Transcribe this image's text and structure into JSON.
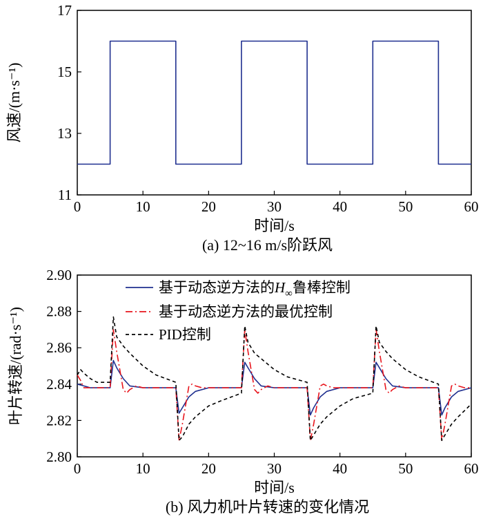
{
  "chart_data": [
    {
      "type": "line",
      "caption": "(a) 12~16 m/s阶跃风",
      "xlabel": "时间/s",
      "ylabel": "风速/(m·s⁻¹)",
      "xlim": [
        0,
        60
      ],
      "ylim": [
        11,
        17
      ],
      "xticks": [
        "0",
        "10",
        "20",
        "30",
        "40",
        "50",
        "60"
      ],
      "yticks": [
        "11",
        "13",
        "15",
        "17"
      ],
      "grid": false,
      "series": [
        {
          "color": "#1f2f8f",
          "dash": "solid",
          "x": [
            0,
            5,
            5,
            15,
            15,
            25,
            25,
            35,
            35,
            45,
            45,
            55,
            55,
            60
          ],
          "y": [
            12,
            12,
            16,
            16,
            12,
            12,
            16,
            16,
            12,
            12,
            16,
            16,
            12,
            12
          ]
        }
      ]
    },
    {
      "type": "line",
      "caption": "(b) 风力机叶片转速的变化情况",
      "xlabel": "时间/s",
      "ylabel": "叶片转速/(rad·s⁻¹)",
      "xlim": [
        0,
        60
      ],
      "ylim": [
        2.8,
        2.9
      ],
      "xticks": [
        "0",
        "10",
        "20",
        "30",
        "40",
        "50",
        "60"
      ],
      "yticks": [
        "2.80",
        "2.82",
        "2.84",
        "2.86",
        "2.88",
        "2.90"
      ],
      "grid": false,
      "legend_position": "top-right",
      "series": [
        {
          "name": "基于动态逆方法的H∞鲁棒控制",
          "color": "#1f2f8f",
          "dash": "solid",
          "x": [
            0,
            1,
            2,
            5,
            5.5,
            6,
            7,
            8,
            10,
            15,
            15.5,
            16,
            17,
            18,
            20,
            25,
            25.5,
            26,
            27,
            28,
            30,
            35,
            35.5,
            36,
            37,
            38,
            40,
            45,
            45.5,
            46,
            47,
            48,
            50,
            55,
            55.5,
            56,
            57,
            58,
            60
          ],
          "y": [
            2.84,
            2.839,
            2.838,
            2.838,
            2.853,
            2.849,
            2.843,
            2.839,
            2.838,
            2.838,
            2.824,
            2.827,
            2.833,
            2.836,
            2.838,
            2.838,
            2.852,
            2.849,
            2.843,
            2.839,
            2.838,
            2.838,
            2.823,
            2.827,
            2.833,
            2.836,
            2.838,
            2.838,
            2.852,
            2.849,
            2.843,
            2.839,
            2.838,
            2.838,
            2.823,
            2.827,
            2.833,
            2.836,
            2.838
          ]
        },
        {
          "name": "基于动态逆方法的最优控制",
          "color": "#e8141c",
          "dash": "dashdot",
          "x": [
            0,
            0.5,
            1,
            2,
            5,
            5.5,
            6,
            7,
            7.5,
            8,
            9,
            10,
            15,
            15.5,
            16,
            17,
            17.5,
            18,
            19,
            20,
            25,
            25.5,
            26,
            27,
            27.5,
            28,
            29,
            30,
            35,
            35.5,
            36,
            37,
            37.5,
            38,
            39,
            40,
            45,
            45.5,
            46,
            47,
            47.5,
            48,
            49,
            50,
            55,
            55.5,
            56,
            57,
            57.5,
            58,
            59,
            60
          ],
          "y": [
            2.845,
            2.842,
            2.838,
            2.838,
            2.838,
            2.87,
            2.858,
            2.837,
            2.835,
            2.837,
            2.839,
            2.838,
            2.838,
            2.809,
            2.818,
            2.839,
            2.84,
            2.839,
            2.838,
            2.838,
            2.838,
            2.87,
            2.858,
            2.837,
            2.835,
            2.837,
            2.839,
            2.838,
            2.838,
            2.809,
            2.818,
            2.839,
            2.84,
            2.839,
            2.838,
            2.838,
            2.838,
            2.87,
            2.858,
            2.837,
            2.835,
            2.837,
            2.839,
            2.838,
            2.838,
            2.809,
            2.818,
            2.839,
            2.84,
            2.839,
            2.838,
            2.838
          ]
        },
        {
          "name": "PID控制",
          "color": "#000000",
          "dash": "dashed",
          "x": [
            0,
            0.5,
            1,
            2,
            3,
            5,
            5.5,
            6,
            7,
            8,
            10,
            12,
            15,
            15.5,
            16,
            17,
            18,
            20,
            22,
            25,
            25.5,
            26,
            27,
            28,
            30,
            32,
            35,
            35.5,
            36,
            37,
            38,
            40,
            42,
            45,
            45.5,
            46,
            47,
            48,
            50,
            52,
            55,
            55.5,
            56,
            57,
            58,
            60
          ],
          "y": [
            2.845,
            2.848,
            2.846,
            2.843,
            2.841,
            2.841,
            2.877,
            2.866,
            2.861,
            2.857,
            2.85,
            2.845,
            2.841,
            2.809,
            2.811,
            2.818,
            2.822,
            2.828,
            2.831,
            2.835,
            2.872,
            2.863,
            2.857,
            2.854,
            2.848,
            2.844,
            2.841,
            2.809,
            2.812,
            2.818,
            2.822,
            2.828,
            2.832,
            2.835,
            2.872,
            2.863,
            2.858,
            2.854,
            2.848,
            2.844,
            2.84,
            2.809,
            2.812,
            2.818,
            2.822,
            2.829
          ]
        }
      ]
    }
  ]
}
